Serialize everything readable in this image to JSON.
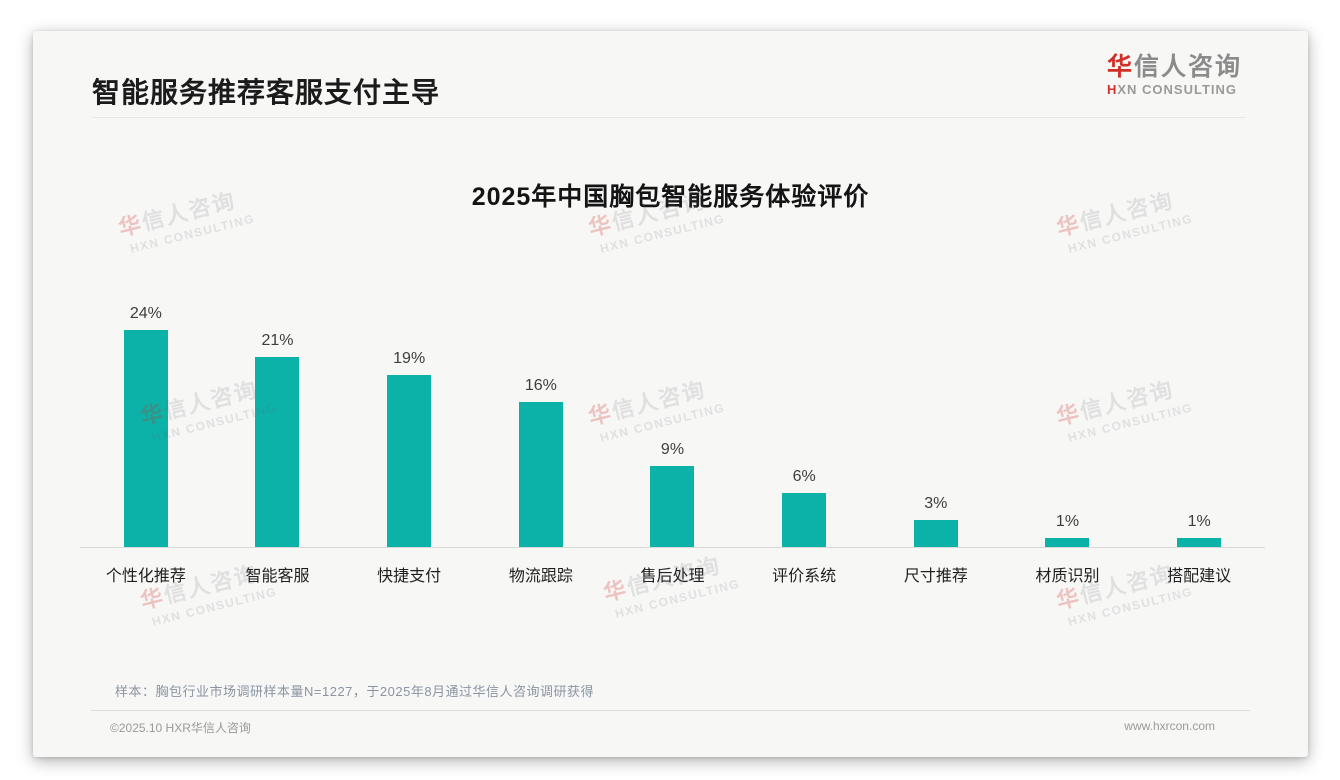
{
  "page": {
    "title": "智能服务推荐客服支付主导"
  },
  "logo": {
    "cn_accent": "华",
    "cn_rest": "信人咨询",
    "en_accent": "H",
    "en_rest": "XN CONSULTING"
  },
  "chart_data": {
    "type": "bar",
    "title": "2025年中国胸包智能服务体验评价",
    "categories": [
      "个性化推荐",
      "智能客服",
      "快捷支付",
      "物流跟踪",
      "售后处理",
      "评价系统",
      "尺寸推荐",
      "材质识别",
      "搭配建议"
    ],
    "values": [
      24,
      21,
      19,
      16,
      9,
      6,
      3,
      1,
      1
    ],
    "value_labels": [
      "24%",
      "21%",
      "19%",
      "16%",
      "9%",
      "6%",
      "3%",
      "1%",
      "1%"
    ],
    "unit": "%",
    "bar_color": "#0cb2a8",
    "xlabel": "",
    "ylabel": "",
    "ylim": [
      0,
      26
    ],
    "grid": false,
    "legend": "none",
    "baseline_color": "#d9d9d9"
  },
  "footnote": "样本：胸包行业市场调研样本量N=1227，于2025年8月通过华信人咨询调研获得",
  "footer": {
    "copyright": "©2025.10 HXR华信人咨询",
    "website": "www.hxrcon.com"
  },
  "watermark": {
    "line1_accent": "华",
    "line1_rest": "信人咨询",
    "line2": "HXN CONSULTING"
  },
  "colors": {
    "bar": "#0cb2a8",
    "accent_red": "#d22f27",
    "title_text": "#1b1b1b",
    "footnote_text": "#8b94a3"
  }
}
